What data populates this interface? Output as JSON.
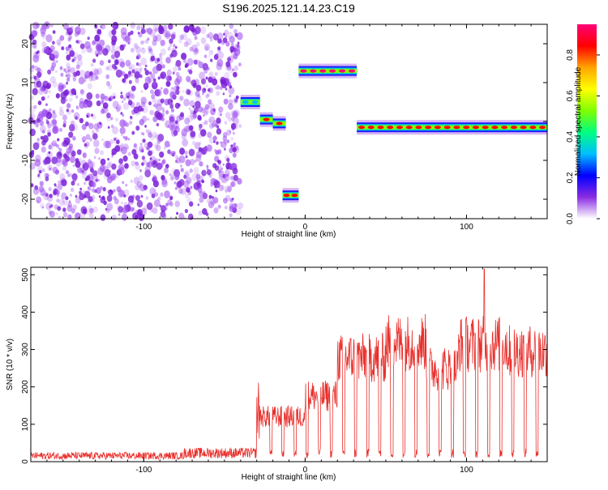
{
  "title": "S196.2025.121.14.23.C19",
  "chart_data": [
    {
      "type": "heatmap",
      "name": "spectrogram",
      "xlabel": "Height of straight line (km)",
      "ylabel": "Frequency (Hz)",
      "xlim": [
        -170,
        150
      ],
      "ylim": [
        -25,
        25
      ],
      "xticks": [
        -100,
        0,
        100
      ],
      "yticks": [
        -20,
        -10,
        0,
        10,
        20
      ],
      "colorbar": {
        "label": "Normalized spectral amplitude",
        "range": [
          0.0,
          0.95
        ],
        "ticks": [
          0.0,
          0.2,
          0.4,
          0.6,
          0.8
        ],
        "colors": [
          "#ffffff",
          "#8a2be2",
          "#0000ff",
          "#00bfff",
          "#00ff80",
          "#7fff00",
          "#ffff00",
          "#ffa500",
          "#ff0000",
          "#ff0077"
        ]
      },
      "noise_region": [
        -170,
        -40
      ],
      "bands": [
        {
          "x": [
            -40,
            -28
          ],
          "freq": 5,
          "peak": 0.35
        },
        {
          "x": [
            -28,
            -20
          ],
          "freq": 0.5,
          "peak": 0.85
        },
        {
          "x": [
            -20,
            -12
          ],
          "freq": -0.5,
          "peak": 0.85
        },
        {
          "x": [
            -14,
            -4
          ],
          "freq": -19,
          "peak": 0.8
        },
        {
          "x": [
            -4,
            32
          ],
          "freq": 13,
          "peak": 0.9
        },
        {
          "x": [
            32,
            150
          ],
          "freq": -1.5,
          "peak": 0.85
        }
      ]
    },
    {
      "type": "line",
      "name": "snr",
      "xlabel": "Height of straight line (km)",
      "ylabel": "SNR (10 * v/v)",
      "xlim": [
        -170,
        150
      ],
      "ylim": [
        0,
        520
      ],
      "xticks": [
        -100,
        0,
        100
      ],
      "yticks": [
        0,
        100,
        200,
        300,
        400,
        500
      ],
      "color": "#e8302c",
      "segments": [
        {
          "x": [
            -170,
            -75
          ],
          "level": 15
        },
        {
          "x": [
            -75,
            -30
          ],
          "level": 22
        },
        {
          "x": [
            -30,
            0
          ],
          "level": 130
        },
        {
          "x": [
            0,
            20
          ],
          "level": 190
        },
        {
          "x": [
            20,
            50
          ],
          "level": 300
        },
        {
          "x": [
            50,
            75
          ],
          "level": 345
        },
        {
          "x": [
            75,
            95
          ],
          "level": 270
        },
        {
          "x": [
            95,
            125
          ],
          "level": 340
        },
        {
          "x": [
            125,
            150
          ],
          "level": 320
        }
      ],
      "peak": {
        "x": 111,
        "y": 515
      }
    }
  ]
}
